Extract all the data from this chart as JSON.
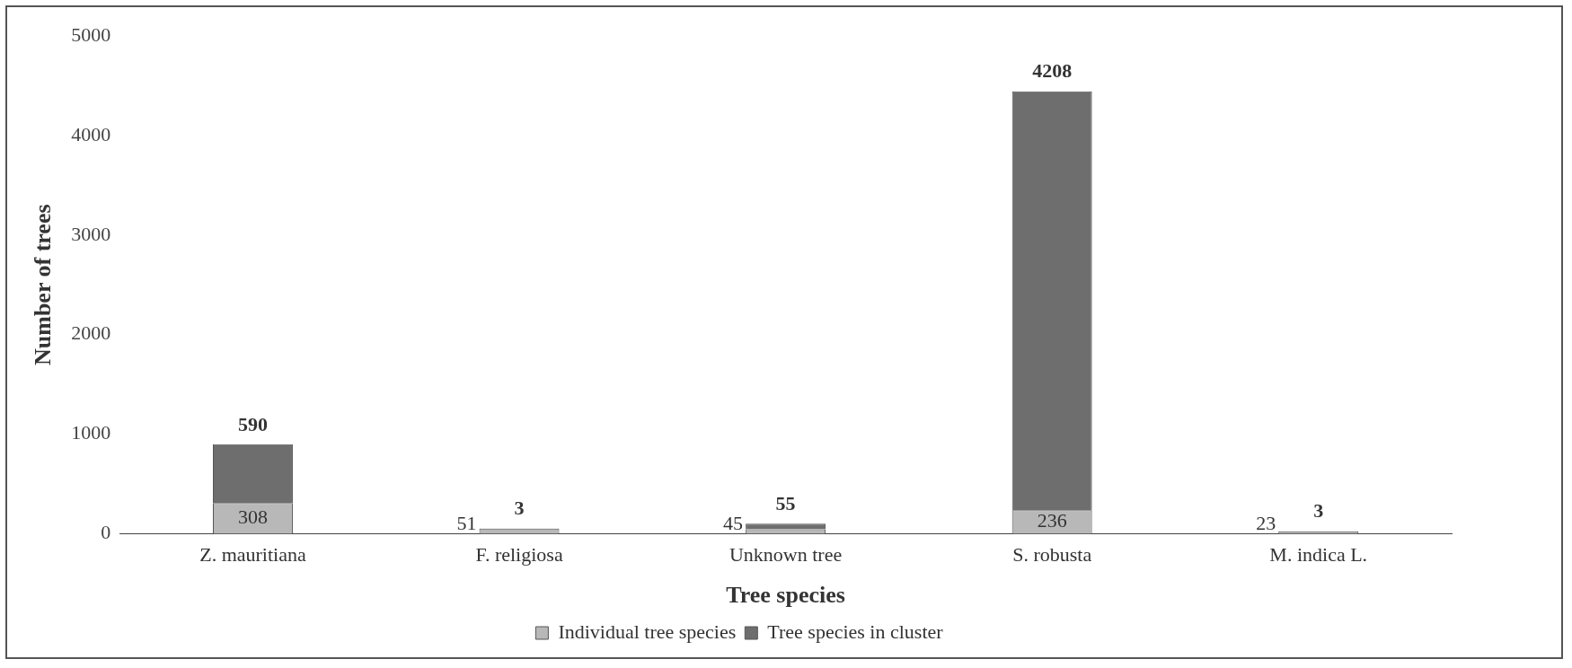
{
  "chart_data": {
    "type": "bar",
    "stacked": true,
    "xlabel": "Tree species",
    "ylabel": "Number of trees",
    "categories": [
      "Z. mauritiana",
      "F. religiosa",
      "Unknown tree",
      "S. robusta",
      "M. indica L."
    ],
    "series": [
      {
        "name": "Individual tree species",
        "color": "#b8b8b8",
        "values": [
          308,
          51,
          45,
          236,
          23
        ]
      },
      {
        "name": "Tree species in cluster",
        "color": "#6e6e6e",
        "values": [
          590,
          3,
          55,
          4208,
          3
        ]
      }
    ],
    "ylim": [
      0,
      5000
    ],
    "yticks": [
      0,
      1000,
      2000,
      3000,
      4000,
      5000
    ],
    "grid": false,
    "legend": "bottom",
    "data_labels": true
  }
}
